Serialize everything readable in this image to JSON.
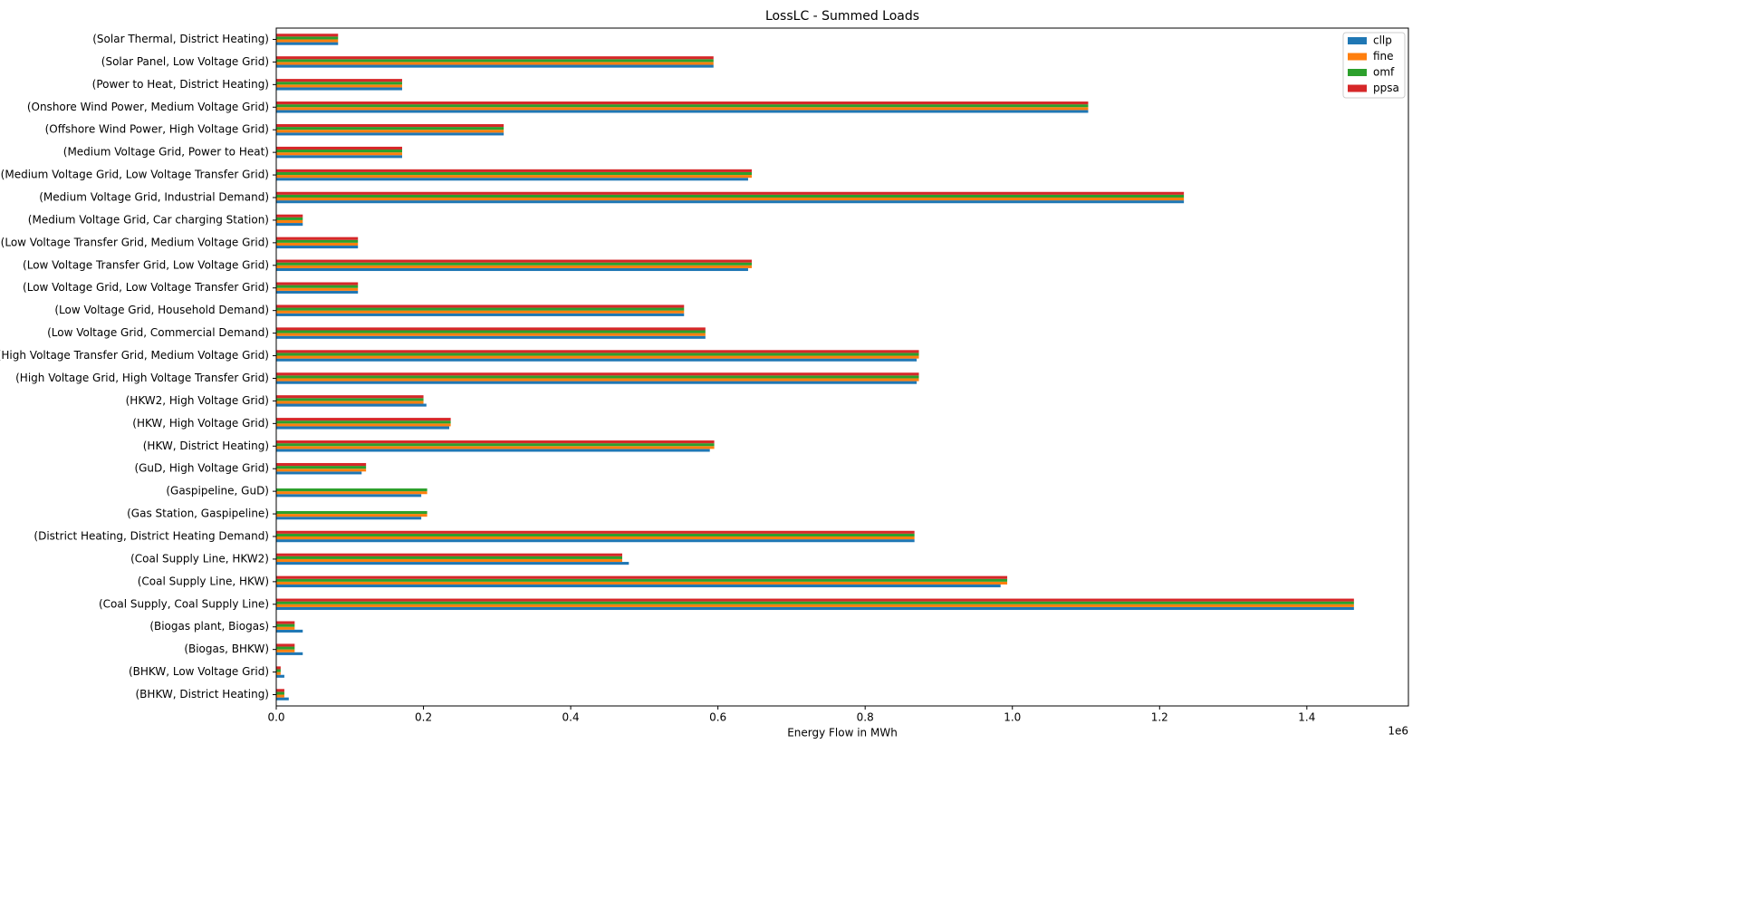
{
  "chart_data": {
    "type": "barh",
    "title": "LossLC -  Summed Loads",
    "xlabel": "Energy Flow in MWh",
    "x_offset_text": "1e6",
    "categories": [
      "(Solar Thermal, District Heating)",
      "(Solar Panel, Low Voltage Grid)",
      "(Power to Heat, District Heating)",
      "(Onshore Wind Power, Medium Voltage Grid)",
      "(Offshore Wind Power, High Voltage Grid)",
      "(Medium Voltage Grid, Power to Heat)",
      "(Medium Voltage Grid, Low Voltage Transfer Grid)",
      "(Medium Voltage Grid, Industrial Demand)",
      "(Medium Voltage Grid, Car charging Station)",
      "(Low Voltage Transfer Grid, Medium Voltage Grid)",
      "(Low Voltage Transfer Grid, Low Voltage Grid)",
      "(Low Voltage Grid, Low Voltage Transfer Grid)",
      "(Low Voltage Grid, Household Demand)",
      "(Low Voltage Grid, Commercial Demand)",
      "(High Voltage Transfer Grid, Medium Voltage Grid)",
      "(High Voltage Grid, High Voltage Transfer Grid)",
      "(HKW2, High Voltage Grid)",
      "(HKW, High Voltage Grid)",
      "(HKW, District Heating)",
      "(GuD, High Voltage Grid)",
      "(Gaspipeline, GuD)",
      "(Gas Station, Gaspipeline)",
      "(District Heating, District Heating Demand)",
      "(Coal Supply Line, HKW2)",
      "(Coal Supply Line, HKW)",
      "(Coal Supply, Coal Supply Line)",
      "(Biogas plant, Biogas)",
      "(Biogas, BHKW)",
      "(BHKW, Low Voltage Grid)",
      "(BHKW, District Heating)"
    ],
    "series": [
      {
        "name": "cllp",
        "color": "#1f77b4",
        "values": [
          0.084,
          0.594,
          0.171,
          1.103,
          0.309,
          0.171,
          0.641,
          1.233,
          0.036,
          0.111,
          0.641,
          0.111,
          0.554,
          0.583,
          0.87,
          0.87,
          0.204,
          0.235,
          0.589,
          0.116,
          0.197,
          0.197,
          0.867,
          0.479,
          0.984,
          1.464,
          0.036,
          0.036,
          0.011,
          0.017
        ]
      },
      {
        "name": "fine",
        "color": "#ff7f0e",
        "values": [
          0.084,
          0.594,
          0.171,
          1.103,
          0.309,
          0.171,
          0.646,
          1.233,
          0.036,
          0.111,
          0.646,
          0.111,
          0.554,
          0.583,
          0.873,
          0.873,
          0.2,
          0.237,
          0.595,
          0.122,
          0.205,
          0.205,
          0.867,
          0.47,
          0.993,
          1.464,
          0.025,
          0.025,
          0.006,
          0.011
        ]
      },
      {
        "name": "omf",
        "color": "#2ca02c",
        "values": [
          0.084,
          0.594,
          0.171,
          1.103,
          0.309,
          0.171,
          0.646,
          1.233,
          0.036,
          0.111,
          0.646,
          0.111,
          0.554,
          0.583,
          0.873,
          0.873,
          0.2,
          0.237,
          0.595,
          0.122,
          0.205,
          0.205,
          0.867,
          0.47,
          0.993,
          1.464,
          0.025,
          0.025,
          0.006,
          0.011
        ]
      },
      {
        "name": "ppsa",
        "color": "#d62728",
        "values": [
          0.084,
          0.594,
          0.171,
          1.103,
          0.309,
          0.171,
          0.646,
          1.233,
          0.036,
          0.111,
          0.646,
          0.111,
          0.554,
          0.583,
          0.873,
          0.873,
          0.2,
          0.237,
          0.595,
          0.122,
          0,
          0,
          0.867,
          0.47,
          0.993,
          1.464,
          0.025,
          0.025,
          0.006,
          0.011
        ]
      }
    ],
    "xlim": [
      0,
      1.538
    ],
    "xticks": [
      {
        "value": 0,
        "label": "0.0"
      },
      0.2,
      0.4,
      0.6,
      0.8,
      {
        "value": 1,
        "label": "1.0"
      },
      1.2,
      1.4
    ],
    "legend": "upper right"
  }
}
